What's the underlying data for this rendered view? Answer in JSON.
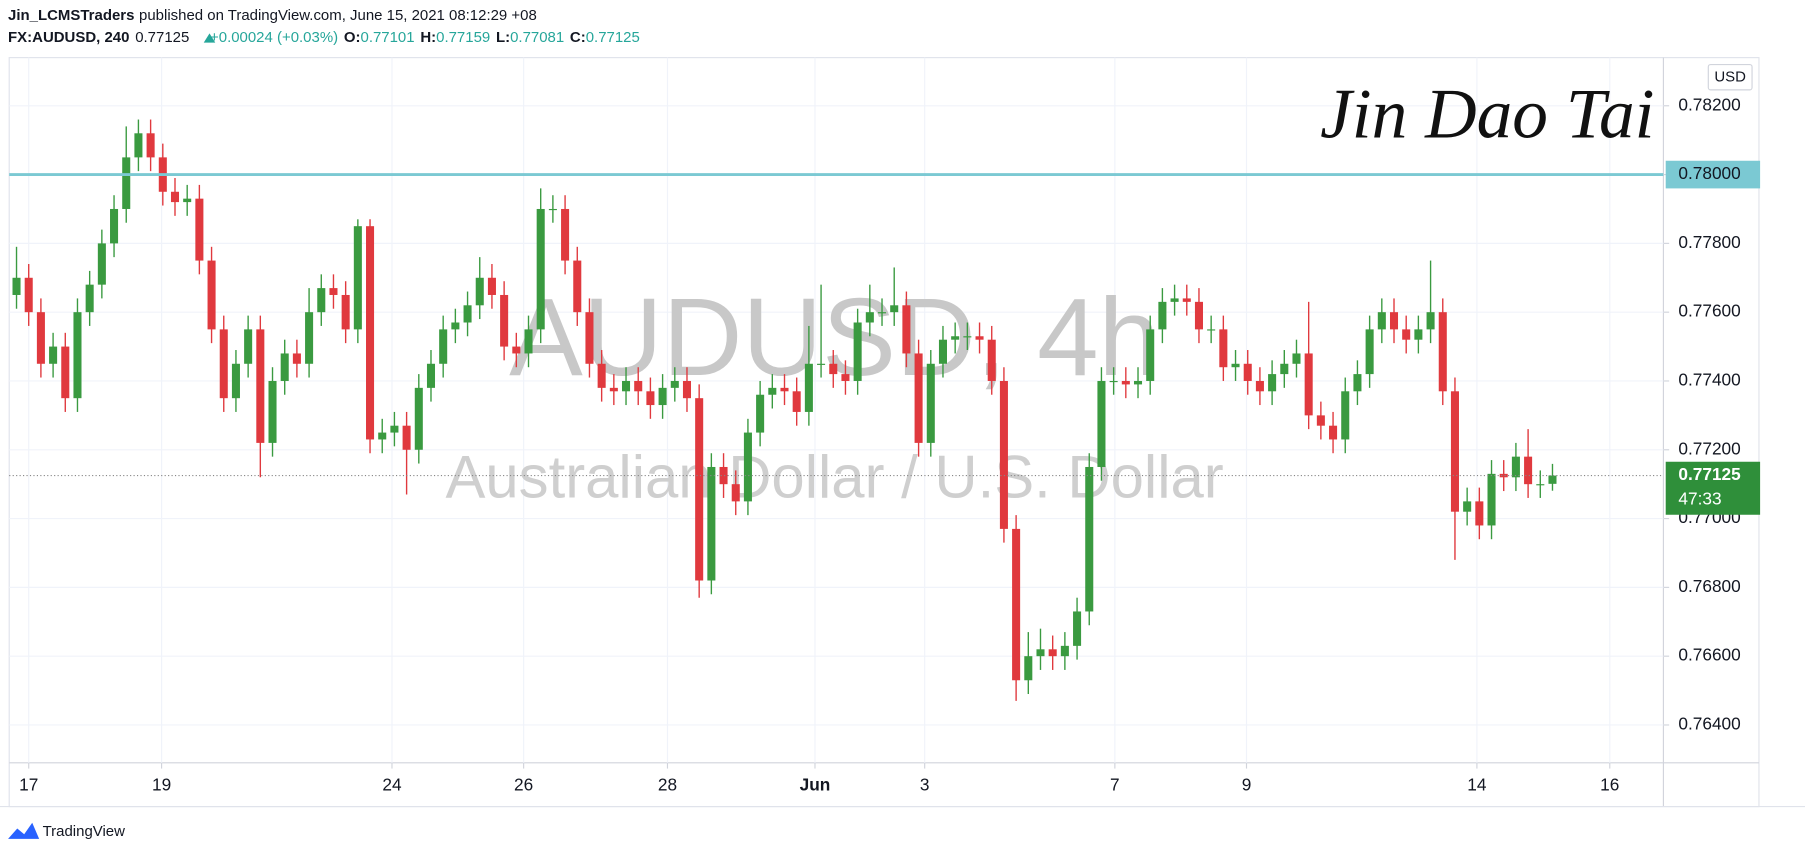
{
  "header": {
    "author": "Jin_LCMSTraders",
    "published": "published on TradingView.com, June 15, 2021 08:12:29 +08",
    "symbol": "FX:AUDUSD, 240",
    "last": "0.77125",
    "change": "+0.00024 (+0.03%)",
    "o_label": "O:",
    "o": "0.77101",
    "h_label": "H:",
    "h": "0.77159",
    "l_label": "L:",
    "l": "0.77081",
    "c_label": "C:",
    "c": "0.77125"
  },
  "watermark": {
    "symbol": "AUDUSD, 4h",
    "description": "Australian Dollar / U.S. Dollar"
  },
  "signature": "Jin Dao Tai",
  "footer": "TradingView",
  "chart_data": {
    "type": "candlestick",
    "currency": "USD",
    "up_color": "#3a9a40",
    "down_color": "#e0393e",
    "open": [
      0.7765,
      0.777,
      0.776,
      0.7745,
      0.775,
      0.7735,
      0.776,
      0.7768,
      0.778,
      0.779,
      0.7805,
      0.7812,
      0.7805,
      0.7795,
      0.7792,
      0.7793,
      0.7775,
      0.7755,
      0.7735,
      0.7745,
      0.7755,
      0.7722,
      0.774,
      0.7748,
      0.7745,
      0.776,
      0.7767,
      0.7765,
      0.7755,
      0.7785,
      0.7723,
      0.7725,
      0.7727,
      0.772,
      0.7738,
      0.7745,
      0.7755,
      0.7757,
      0.7762,
      0.777,
      0.7765,
      0.775,
      0.7748,
      0.7755,
      0.779,
      0.779,
      0.7775,
      0.776,
      0.7745,
      0.7738,
      0.7737,
      0.774,
      0.7737,
      0.7733,
      0.7738,
      0.774,
      0.7735,
      0.7682,
      0.7715,
      0.771,
      0.7705,
      0.7725,
      0.7736,
      0.7738,
      0.7737,
      0.7731,
      0.7745,
      0.7745,
      0.7742,
      0.774,
      0.7757,
      0.776,
      0.776,
      0.7762,
      0.7748,
      0.7722,
      0.7745,
      0.7752,
      0.7753,
      0.7753,
      0.7752,
      0.774,
      0.7697,
      0.7653,
      0.766,
      0.7662,
      0.766,
      0.7663,
      0.7673,
      0.7715,
      0.774,
      0.774,
      0.7739,
      0.774,
      0.7755,
      0.7763,
      0.7764,
      0.7763,
      0.7755,
      0.7755,
      0.7744,
      0.7745,
      0.774,
      0.7737,
      0.7742,
      0.7745,
      0.7748,
      0.773,
      0.7727,
      0.7723,
      0.7737,
      0.7742,
      0.7755,
      0.776,
      0.7755,
      0.7752,
      0.7755,
      0.776,
      0.7737,
      0.7702,
      0.7705,
      0.7698,
      0.7713,
      0.7712,
      0.7718,
      0.771,
      0.77101
    ],
    "high": [
      0.7779,
      0.7774,
      0.7764,
      0.7754,
      0.7754,
      0.7764,
      0.7772,
      0.7784,
      0.7794,
      0.7814,
      0.7816,
      0.7816,
      0.7809,
      0.7799,
      0.7797,
      0.7797,
      0.7779,
      0.7759,
      0.7749,
      0.7759,
      0.7759,
      0.7744,
      0.7752,
      0.7752,
      0.7767,
      0.7771,
      0.7771,
      0.7769,
      0.7787,
      0.7787,
      0.7729,
      0.7731,
      0.7731,
      0.7742,
      0.7749,
      0.7759,
      0.7761,
      0.7766,
      0.7776,
      0.7774,
      0.7769,
      0.7754,
      0.7759,
      0.7796,
      0.7794,
      0.7794,
      0.7779,
      0.7764,
      0.7749,
      0.7742,
      0.7744,
      0.7744,
      0.7741,
      0.7742,
      0.7744,
      0.7744,
      0.7739,
      0.7719,
      0.7719,
      0.7714,
      0.7729,
      0.774,
      0.7742,
      0.7742,
      0.7741,
      0.7756,
      0.7768,
      0.7749,
      0.7746,
      0.7761,
      0.7768,
      0.7764,
      0.7773,
      0.7766,
      0.7752,
      0.7749,
      0.7756,
      0.7757,
      0.7757,
      0.7757,
      0.7756,
      0.7744,
      0.7701,
      0.7667,
      0.7668,
      0.7666,
      0.7667,
      0.7677,
      0.7719,
      0.7744,
      0.7744,
      0.7744,
      0.7744,
      0.7759,
      0.7767,
      0.7768,
      0.7768,
      0.7767,
      0.7759,
      0.7759,
      0.7749,
      0.7749,
      0.7744,
      0.7746,
      0.7749,
      0.7752,
      0.7763,
      0.7734,
      0.7731,
      0.7741,
      0.7746,
      0.7759,
      0.7764,
      0.7764,
      0.7759,
      0.7759,
      0.7775,
      0.7764,
      0.7741,
      0.7709,
      0.7709,
      0.7717,
      0.7717,
      0.7722,
      0.7726,
      0.7714,
      0.77159
    ],
    "low": [
      0.7761,
      0.7756,
      0.7741,
      0.7741,
      0.7731,
      0.7731,
      0.7756,
      0.7764,
      0.7776,
      0.7786,
      0.7801,
      0.7801,
      0.7791,
      0.7788,
      0.7788,
      0.7771,
      0.7751,
      0.7731,
      0.7731,
      0.7741,
      0.7712,
      0.7718,
      0.7736,
      0.7741,
      0.7741,
      0.7756,
      0.7761,
      0.7751,
      0.7751,
      0.7719,
      0.7719,
      0.7721,
      0.7707,
      0.7716,
      0.7734,
      0.7741,
      0.7751,
      0.7753,
      0.7758,
      0.7761,
      0.7746,
      0.7744,
      0.7744,
      0.7751,
      0.7786,
      0.7771,
      0.7756,
      0.7741,
      0.7734,
      0.7733,
      0.7733,
      0.7733,
      0.7729,
      0.7729,
      0.7734,
      0.7731,
      0.7677,
      0.7678,
      0.7706,
      0.7701,
      0.7701,
      0.7721,
      0.7732,
      0.7733,
      0.7727,
      0.7727,
      0.7741,
      0.7738,
      0.7736,
      0.7736,
      0.7753,
      0.7756,
      0.7756,
      0.7744,
      0.7718,
      0.7718,
      0.7741,
      0.7748,
      0.7749,
      0.7748,
      0.7736,
      0.7693,
      0.7647,
      0.7649,
      0.7656,
      0.7656,
      0.7656,
      0.7659,
      0.7669,
      0.7711,
      0.7736,
      0.7735,
      0.7735,
      0.7736,
      0.7751,
      0.7759,
      0.7759,
      0.7751,
      0.7751,
      0.774,
      0.774,
      0.7736,
      0.7733,
      0.7733,
      0.7738,
      0.7741,
      0.7726,
      0.7723,
      0.7719,
      0.7719,
      0.7733,
      0.7738,
      0.7751,
      0.7751,
      0.7748,
      0.7748,
      0.7751,
      0.7733,
      0.7688,
      0.7698,
      0.7694,
      0.7694,
      0.7708,
      0.7708,
      0.7706,
      0.7706,
      0.77081
    ],
    "close": [
      0.777,
      0.776,
      0.7745,
      0.775,
      0.7735,
      0.776,
      0.7768,
      0.778,
      0.779,
      0.7805,
      0.7812,
      0.7805,
      0.7795,
      0.7792,
      0.7793,
      0.7775,
      0.7755,
      0.7735,
      0.7745,
      0.7755,
      0.7722,
      0.774,
      0.7748,
      0.7745,
      0.776,
      0.7767,
      0.7765,
      0.7755,
      0.7785,
      0.7723,
      0.7725,
      0.7727,
      0.772,
      0.7738,
      0.7745,
      0.7755,
      0.7757,
      0.7762,
      0.777,
      0.7765,
      0.775,
      0.7748,
      0.7755,
      0.779,
      0.779,
      0.7775,
      0.776,
      0.7745,
      0.7738,
      0.7737,
      0.774,
      0.7737,
      0.7733,
      0.7738,
      0.774,
      0.7735,
      0.7682,
      0.7715,
      0.771,
      0.7705,
      0.7725,
      0.7736,
      0.7738,
      0.7737,
      0.7731,
      0.7745,
      0.7745,
      0.7742,
      0.774,
      0.7757,
      0.776,
      0.776,
      0.7762,
      0.7748,
      0.7722,
      0.7745,
      0.7752,
      0.7753,
      0.7753,
      0.7752,
      0.774,
      0.7697,
      0.7653,
      0.766,
      0.7662,
      0.766,
      0.7663,
      0.7673,
      0.7715,
      0.774,
      0.774,
      0.7739,
      0.774,
      0.7755,
      0.7763,
      0.7764,
      0.7763,
      0.7755,
      0.7755,
      0.7744,
      0.7745,
      0.774,
      0.7737,
      0.7742,
      0.7745,
      0.7748,
      0.773,
      0.7727,
      0.7723,
      0.7737,
      0.7742,
      0.7755,
      0.776,
      0.7755,
      0.7752,
      0.7755,
      0.776,
      0.7737,
      0.7702,
      0.7705,
      0.7698,
      0.7713,
      0.7712,
      0.7718,
      0.771,
      0.771,
      0.77125
    ],
    "xlim": [
      -0.6,
      135.1
    ],
    "xticks": [
      {
        "value": 1.0,
        "label": "17"
      },
      {
        "value": 11.9,
        "label": "19"
      },
      {
        "value": 30.8,
        "label": "24"
      },
      {
        "value": 41.6,
        "label": "26"
      },
      {
        "value": 53.4,
        "label": "28"
      },
      {
        "value": 65.5,
        "label": "Jun"
      },
      {
        "value": 74.5,
        "label": "3"
      },
      {
        "value": 90.1,
        "label": "7"
      },
      {
        "value": 100.9,
        "label": "9"
      },
      {
        "value": 119.8,
        "label": "14"
      },
      {
        "value": 130.7,
        "label": "16"
      }
    ],
    "ylim": [
      0.7629,
      0.7834
    ],
    "yticks": [
      {
        "value": 0.764,
        "label": "0.76400"
      },
      {
        "value": 0.766,
        "label": "0.76600"
      },
      {
        "value": 0.768,
        "label": "0.76800"
      },
      {
        "value": 0.77,
        "label": "0.77000"
      },
      {
        "value": 0.772,
        "label": "0.77200"
      },
      {
        "value": 0.774,
        "label": "0.77400"
      },
      {
        "value": 0.776,
        "label": "0.77600"
      },
      {
        "value": 0.778,
        "label": "0.77800"
      },
      {
        "value": 0.78,
        "label": "0.78000"
      },
      {
        "value": 0.782,
        "label": "0.78200"
      }
    ],
    "grid": true,
    "hline": {
      "value": 0.78,
      "label": "0.78000",
      "color": "#7bc9d3"
    },
    "last_price": {
      "value": 0.77125,
      "label": "0.77125",
      "countdown": "47:33",
      "color": "#2f8f3a"
    }
  }
}
